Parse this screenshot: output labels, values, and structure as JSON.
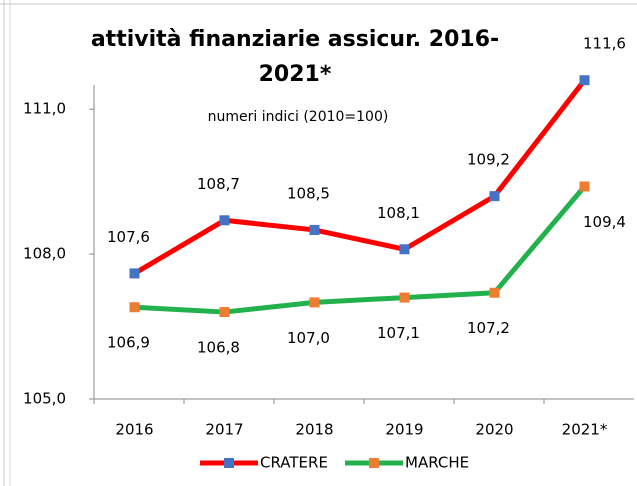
{
  "chart_data": {
    "type": "line",
    "title": [
      "attività finanziarie assicur. 2016-",
      "2021*"
    ],
    "subtitle": "numeri indici (2010=100)",
    "categories": [
      "2016",
      "2017",
      "2018",
      "2019",
      "2020",
      "2021*"
    ],
    "series": [
      {
        "name": "CRATERE",
        "color": "#ff0000",
        "marker_color": "#4472c4",
        "values": [
          107.6,
          108.7,
          108.5,
          108.1,
          109.2,
          111.6
        ],
        "value_labels": [
          "107,6",
          "108,7",
          "108,5",
          "108,1",
          "109,2",
          "111,6"
        ]
      },
      {
        "name": "MARCHE",
        "color": "#22b14c",
        "marker_color": "#ed7d31",
        "values": [
          106.9,
          106.8,
          107.0,
          107.1,
          107.2,
          109.4
        ],
        "value_labels": [
          "106,9",
          "106,8",
          "107,0",
          "107,1",
          "107,2",
          "109,4"
        ]
      }
    ],
    "ylim": [
      105,
      111.5
    ],
    "yticks": [
      {
        "value": 105,
        "label": "105,0"
      },
      {
        "value": 108,
        "label": "108,0"
      },
      {
        "value": 111,
        "label": "111,0"
      }
    ],
    "legend": "bottom"
  }
}
